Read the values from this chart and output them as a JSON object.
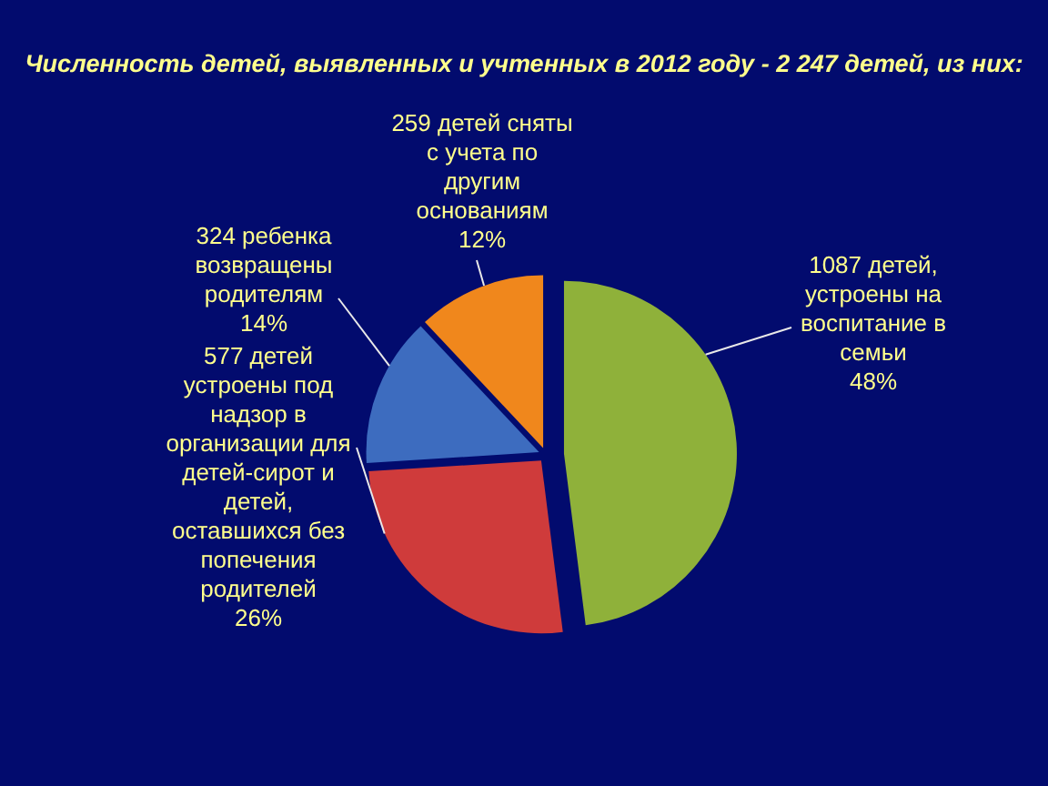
{
  "chart_data": {
    "type": "pie",
    "title": "Численность детей, выявленных и учтенных в 2012 году - 2 247 детей, из них:",
    "categories": [
      "1087 детей, устроены на воспитание в семьи",
      "577 детей устроены под надзор в организации для детей-сирот и детей, оставшихся без попечения родителей",
      "324 ребенка возвращены родителям",
      "259 детей сняты с учета по другим основаниям"
    ],
    "values": [
      48,
      26,
      14,
      12
    ],
    "colors": [
      "#8fb13a",
      "#cf3b3b",
      "#3d6cbf",
      "#f0871c"
    ],
    "value_labels": [
      "48%",
      "26%",
      "14%",
      "12%"
    ]
  }
}
